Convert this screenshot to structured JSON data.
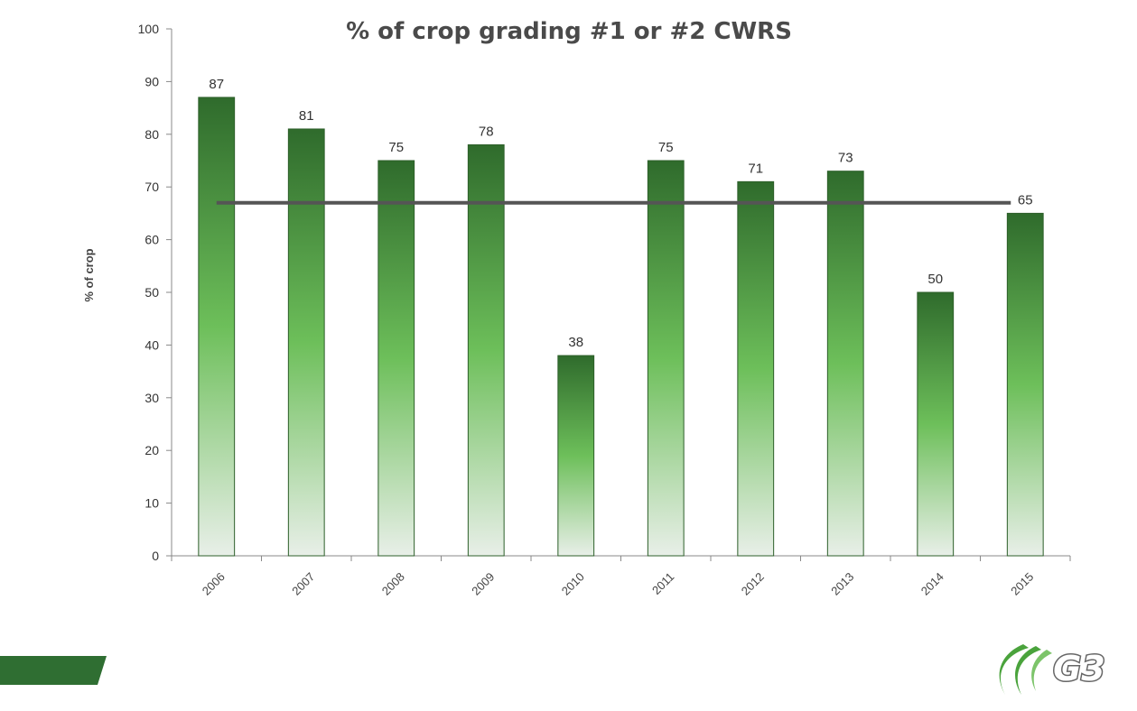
{
  "chart_data": {
    "type": "bar",
    "title": "% of crop grading #1 or #2 CWRS",
    "ylabel": "% of crop",
    "xlabel": "",
    "categories": [
      "2006",
      "2007",
      "2008",
      "2009",
      "2010",
      "2011",
      "2012",
      "2013",
      "2014",
      "2015"
    ],
    "values": [
      87,
      81,
      75,
      78,
      38,
      75,
      71,
      73,
      50,
      65
    ],
    "data_labels": [
      "87",
      "81",
      "75",
      "78",
      "38",
      "75",
      "71",
      "73",
      "50",
      "65"
    ],
    "ylim": [
      0,
      100
    ],
    "yticks": [
      0,
      10,
      20,
      30,
      40,
      50,
      60,
      70,
      80,
      90,
      100
    ],
    "average_line_value": 67,
    "grid": false,
    "legend": "none",
    "colors": {
      "bar_top": "#2f6b2c",
      "bar_mid": "#6dbf5a",
      "bar_bottom": "#e6eee6",
      "bar_border": "#2d5f2a",
      "average_line": "#555555",
      "footer_bar": "#2f6e32",
      "logo_green": "#4aa33c"
    }
  },
  "logo": {
    "text": "G3"
  }
}
